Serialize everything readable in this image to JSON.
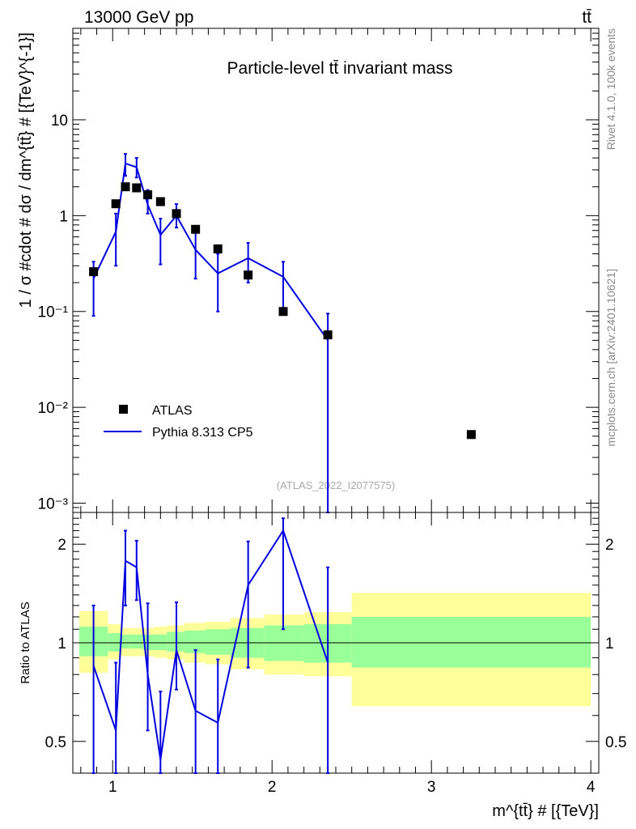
{
  "header": {
    "left": "13000 GeV pp",
    "right": "tt̄"
  },
  "side_labels": {
    "rivet": "Rivet 4.1.0,  100k events",
    "mcplots": "mcplots.cern.ch [arXiv:2401.10621]"
  },
  "chart_data": [
    {
      "type": "scatter",
      "title": "Particle-level tt̄ invariant mass",
      "watermark": "(ATLAS_2022_I2077575)",
      "xlabel": "m^{tt̄} # [{TeV}]",
      "ylabel": "1 / σ #cdot # dσ / dm^{tt̄} # [{TeV}^{-1}]",
      "yscale": "log",
      "xlim": [
        0.75,
        4.05
      ],
      "ylim": [
        0.0008,
        90
      ],
      "y_tick_labels": [
        "10⁻³",
        "10⁻²",
        "10⁻¹",
        "1",
        "10"
      ],
      "legend_position": "lower-left",
      "series": [
        {
          "name": "ATLAS",
          "style": "markers",
          "color": "#000000",
          "x": [
            0.88,
            1.02,
            1.08,
            1.15,
            1.22,
            1.3,
            1.4,
            1.52,
            1.66,
            1.85,
            2.07,
            2.35,
            3.25
          ],
          "y": [
            0.26,
            1.33,
            2.0,
            1.95,
            1.65,
            1.4,
            1.05,
            0.72,
            0.45,
            0.24,
            0.1,
            0.057,
            0.0052
          ]
        },
        {
          "name": "Pythia 8.313 CP5",
          "style": "line",
          "color": "#0000e0",
          "x": [
            0.88,
            1.02,
            1.08,
            1.15,
            1.22,
            1.3,
            1.4,
            1.52,
            1.66,
            1.85,
            2.07,
            2.35
          ],
          "y": [
            0.22,
            0.68,
            3.5,
            3.2,
            1.3,
            0.63,
            1.0,
            0.44,
            0.25,
            0.36,
            0.23,
            0.05
          ],
          "err_low": [
            0.09,
            0.3,
            2.6,
            2.5,
            1.05,
            0.31,
            0.75,
            0.22,
            0.1,
            0.2,
            0.1,
            0.0001
          ],
          "err_high": [
            0.33,
            1.05,
            4.4,
            4.0,
            1.85,
            0.93,
            1.32,
            0.67,
            0.4,
            0.52,
            0.33,
            0.095
          ]
        }
      ]
    },
    {
      "type": "line",
      "ylabel": "Ratio to ATLAS",
      "yscale": "log",
      "xlim": [
        0.75,
        4.05
      ],
      "ylim": [
        0.4,
        2.5
      ],
      "x_ticks": [
        1,
        2,
        3,
        4
      ],
      "y_ticks": [
        0.5,
        1,
        2
      ],
      "reference_line": 1,
      "bands": [
        {
          "x0": 0.79,
          "x1": 0.97,
          "inner": [
            0.91,
            1.12
          ],
          "outer": [
            0.81,
            1.25
          ]
        },
        {
          "x0": 0.97,
          "x1": 1.05,
          "inner": [
            0.94,
            1.07
          ],
          "outer": [
            0.89,
            1.14
          ]
        },
        {
          "x0": 1.05,
          "x1": 1.11,
          "inner": [
            0.96,
            1.06
          ],
          "outer": [
            0.91,
            1.11
          ]
        },
        {
          "x0": 1.11,
          "x1": 1.19,
          "inner": [
            0.96,
            1.06
          ],
          "outer": [
            0.91,
            1.11
          ]
        },
        {
          "x0": 1.19,
          "x1": 1.26,
          "inner": [
            0.95,
            1.06
          ],
          "outer": [
            0.91,
            1.11
          ]
        },
        {
          "x0": 1.26,
          "x1": 1.34,
          "inner": [
            0.95,
            1.06
          ],
          "outer": [
            0.9,
            1.12
          ]
        },
        {
          "x0": 1.34,
          "x1": 1.45,
          "inner": [
            0.94,
            1.08
          ],
          "outer": [
            0.89,
            1.13
          ]
        },
        {
          "x0": 1.45,
          "x1": 1.58,
          "inner": [
            0.93,
            1.09
          ],
          "outer": [
            0.87,
            1.15
          ]
        },
        {
          "x0": 1.58,
          "x1": 1.74,
          "inner": [
            0.92,
            1.1
          ],
          "outer": [
            0.86,
            1.16
          ]
        },
        {
          "x0": 1.74,
          "x1": 1.95,
          "inner": [
            0.9,
            1.11
          ],
          "outer": [
            0.83,
            1.19
          ]
        },
        {
          "x0": 1.95,
          "x1": 2.2,
          "inner": [
            0.88,
            1.13
          ],
          "outer": [
            0.8,
            1.22
          ]
        },
        {
          "x0": 2.2,
          "x1": 2.5,
          "inner": [
            0.87,
            1.14
          ],
          "outer": [
            0.79,
            1.24
          ]
        },
        {
          "x0": 2.5,
          "x1": 4.0,
          "inner": [
            0.84,
            1.2
          ],
          "outer": [
            0.64,
            1.42
          ]
        }
      ],
      "series": [
        {
          "name": "Pythia 8.313 CP5",
          "color": "#0000e0",
          "x": [
            0.88,
            1.02,
            1.08,
            1.15,
            1.22,
            1.3,
            1.4,
            1.52,
            1.66,
            1.85,
            2.07,
            2.35
          ],
          "y": [
            0.85,
            0.54,
            1.78,
            1.7,
            0.8,
            0.44,
            0.95,
            0.62,
            0.57,
            1.5,
            2.2,
            0.87
          ],
          "err_low": [
            0.3,
            0.24,
            1.3,
            1.35,
            0.54,
            0.3,
            0.72,
            0.3,
            0.3,
            0.84,
            1.1,
            0.3
          ],
          "err_high": [
            1.3,
            0.87,
            2.2,
            2.05,
            1.32,
            0.71,
            1.33,
            0.95,
            0.89,
            2.04,
            2.4,
            1.7
          ]
        }
      ]
    }
  ]
}
